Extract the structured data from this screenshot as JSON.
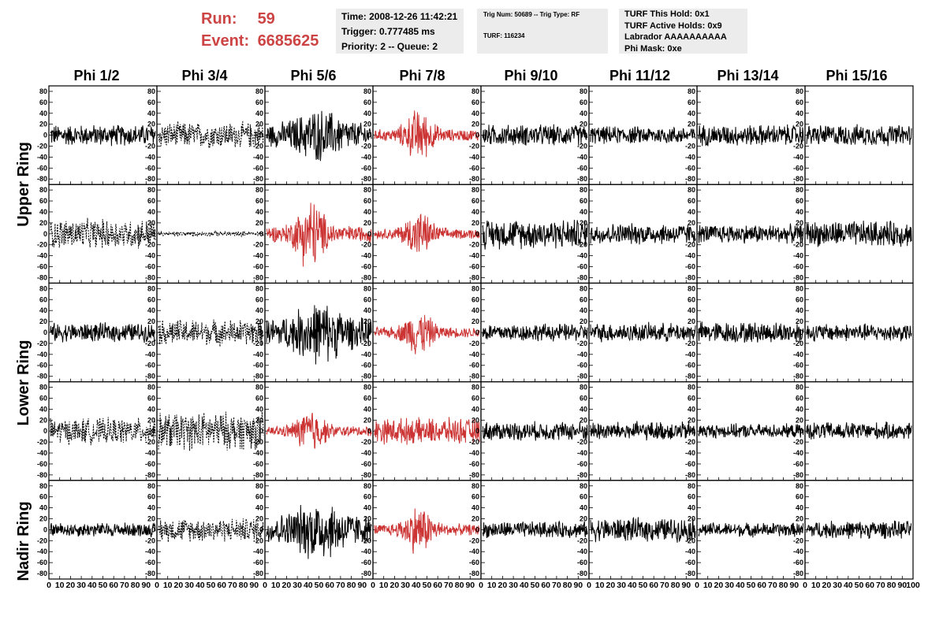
{
  "header": {
    "run_label": "Run:",
    "run_value": "59",
    "event_label": "Event:",
    "event_value": "6685625",
    "time": "Time: 2008-12-26 11:42:21",
    "trigger": "Trigger: 0.777485 ms",
    "priority": "Priority: 2 -- Queue: 2",
    "trig_num": "Trig Num: 50689 -- Trig Type: RF",
    "turf": "TURF: 116234",
    "turf_hold": "TURF This Hold: 0x1",
    "turf_active": "TURF Active Holds: 0x9",
    "labrador": "Labrador AAAAAAAAAA",
    "phi_mask": "Phi Mask: 0xe"
  },
  "columns": [
    "Phi 1/2",
    "Phi 3/4",
    "Phi 5/6",
    "Phi 7/8",
    "Phi 9/10",
    "Phi 11/12",
    "Phi 13/14",
    "Phi 15/16"
  ],
  "rings": [
    "Upper Ring",
    "Lower Ring",
    "Nadir Ring"
  ],
  "colors": {
    "normal": "#000000",
    "triggered": "#cc3333",
    "run": "#cc4444",
    "box": "#ececec"
  },
  "chart_data": {
    "type": "line",
    "rows": 5,
    "cols": 8,
    "ylim": [
      -90,
      90
    ],
    "xlim": [
      0,
      100
    ],
    "y_ticks": [
      -80,
      -60,
      -40,
      -20,
      0,
      20,
      40,
      60,
      80
    ],
    "x_ticks": [
      0,
      10,
      20,
      30,
      40,
      50,
      60,
      70,
      80,
      90,
      100
    ],
    "panels": [
      [
        {
          "style": "solid",
          "color": "black",
          "amp": 18,
          "shape": "flat"
        },
        {
          "style": "dashed",
          "color": "black",
          "amp": 22,
          "shape": "flat"
        },
        {
          "style": "solid",
          "color": "black",
          "amp": 38,
          "shape": "burst"
        },
        {
          "style": "solid",
          "color": "red",
          "amp": 40,
          "shape": "pulse"
        },
        {
          "style": "solid",
          "color": "black",
          "amp": 18,
          "shape": "flat"
        },
        {
          "style": "solid",
          "color": "black",
          "amp": 15,
          "shape": "flat"
        },
        {
          "style": "solid",
          "color": "black",
          "amp": 18,
          "shape": "flat"
        },
        {
          "style": "solid",
          "color": "black",
          "amp": 18,
          "shape": "flat"
        }
      ],
      [
        {
          "style": "dashed",
          "color": "black",
          "amp": 25,
          "shape": "flat"
        },
        {
          "style": "dashed",
          "color": "black",
          "amp": 4,
          "shape": "flat"
        },
        {
          "style": "solid",
          "color": "red",
          "amp": 55,
          "shape": "pulse"
        },
        {
          "style": "solid",
          "color": "red",
          "amp": 35,
          "shape": "pulse"
        },
        {
          "style": "solid",
          "color": "black",
          "amp": 25,
          "shape": "flat"
        },
        {
          "style": "solid",
          "color": "black",
          "amp": 18,
          "shape": "flat"
        },
        {
          "style": "solid",
          "color": "black",
          "amp": 16,
          "shape": "flat"
        },
        {
          "style": "solid",
          "color": "black",
          "amp": 22,
          "shape": "flat"
        }
      ],
      [
        {
          "style": "solid",
          "color": "black",
          "amp": 16,
          "shape": "flat"
        },
        {
          "style": "dashed",
          "color": "black",
          "amp": 22,
          "shape": "flat"
        },
        {
          "style": "solid",
          "color": "black",
          "amp": 45,
          "shape": "burst"
        },
        {
          "style": "solid",
          "color": "red",
          "amp": 35,
          "shape": "pulse"
        },
        {
          "style": "solid",
          "color": "black",
          "amp": 15,
          "shape": "flat"
        },
        {
          "style": "solid",
          "color": "black",
          "amp": 16,
          "shape": "flat"
        },
        {
          "style": "solid",
          "color": "black",
          "amp": 18,
          "shape": "flat"
        },
        {
          "style": "solid",
          "color": "black",
          "amp": 15,
          "shape": "flat"
        }
      ],
      [
        {
          "style": "dashed",
          "color": "black",
          "amp": 22,
          "shape": "flat"
        },
        {
          "style": "dashed",
          "color": "black",
          "amp": 32,
          "shape": "flat"
        },
        {
          "style": "solid",
          "color": "red",
          "amp": 35,
          "shape": "pulse"
        },
        {
          "style": "solid",
          "color": "red",
          "amp": 22,
          "shape": "flat"
        },
        {
          "style": "solid",
          "color": "black",
          "amp": 16,
          "shape": "flat"
        },
        {
          "style": "solid",
          "color": "black",
          "amp": 16,
          "shape": "flat"
        },
        {
          "style": "solid",
          "color": "black",
          "amp": 12,
          "shape": "flat"
        },
        {
          "style": "solid",
          "color": "black",
          "amp": 15,
          "shape": "flat"
        }
      ],
      [
        {
          "style": "solid",
          "color": "black",
          "amp": 12,
          "shape": "flat"
        },
        {
          "style": "dashed",
          "color": "black",
          "amp": 20,
          "shape": "flat"
        },
        {
          "style": "solid",
          "color": "black",
          "amp": 45,
          "shape": "burst"
        },
        {
          "style": "solid",
          "color": "red",
          "amp": 38,
          "shape": "pulse"
        },
        {
          "style": "solid",
          "color": "black",
          "amp": 14,
          "shape": "flat"
        },
        {
          "style": "solid",
          "color": "black",
          "amp": 20,
          "shape": "flat"
        },
        {
          "style": "solid",
          "color": "black",
          "amp": 12,
          "shape": "flat"
        },
        {
          "style": "solid",
          "color": "black",
          "amp": 15,
          "shape": "flat"
        }
      ]
    ]
  }
}
